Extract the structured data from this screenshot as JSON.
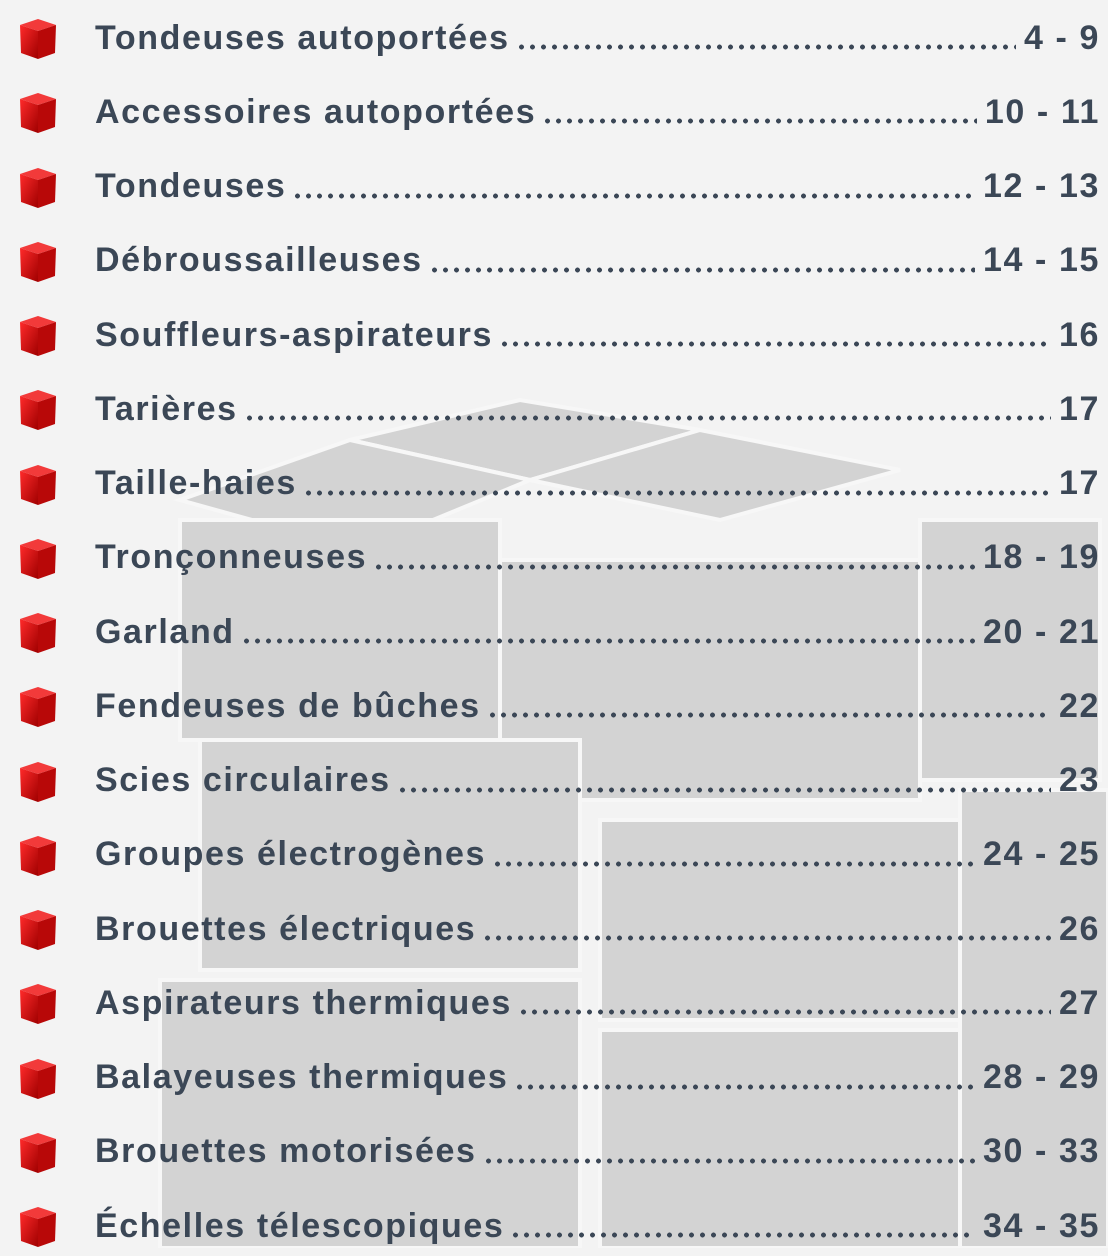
{
  "toc": {
    "entries": [
      {
        "title": "Tondeuses autoportées",
        "pages": "4 - 9"
      },
      {
        "title": "Accessoires autoportées",
        "pages": "10 - 11"
      },
      {
        "title": "Tondeuses",
        "pages": "12 - 13"
      },
      {
        "title": "Débroussailleuses",
        "pages": "14 - 15"
      },
      {
        "title": "Souffleurs-aspirateurs",
        "pages": "16"
      },
      {
        "title": "Tarières",
        "pages": "17"
      },
      {
        "title": "Taille-haies",
        "pages": "17"
      },
      {
        "title": "Tronçonneuses",
        "pages": "18 - 19"
      },
      {
        "title": "Garland",
        "pages": "20 - 21"
      },
      {
        "title": "Fendeuses de bûches",
        "pages": "22"
      },
      {
        "title": "Scies circulaires",
        "pages": "23"
      },
      {
        "title": "Groupes électrogènes",
        "pages": "24 - 25"
      },
      {
        "title": "Brouettes électriques",
        "pages": "26"
      },
      {
        "title": "Aspirateurs thermiques",
        "pages": "27"
      },
      {
        "title": "Balayeuses thermiques",
        "pages": "28 - 29"
      },
      {
        "title": "Brouettes motorisées",
        "pages": "30 - 33"
      },
      {
        "title": "Échelles télescopiques",
        "pages": "34 - 35"
      }
    ]
  }
}
